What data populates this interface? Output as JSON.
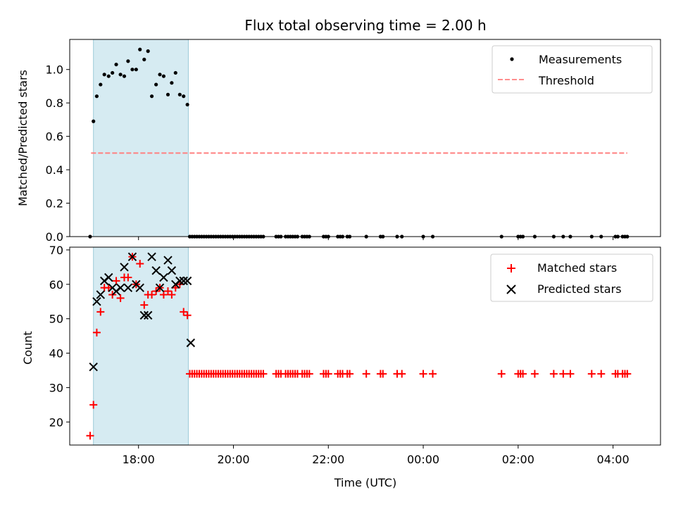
{
  "chart_data": {
    "title": "Flux total observing time = 2.00 h",
    "xlabel": "Time (UTC)",
    "x_unit": "hours",
    "xlim": [
      16.55,
      29.0
    ],
    "xticks": [
      {
        "value": 18,
        "label": "18:00"
      },
      {
        "value": 20,
        "label": "20:00"
      },
      {
        "value": 22,
        "label": "22:00"
      },
      {
        "value": 24,
        "label": "00:00"
      },
      {
        "value": 26,
        "label": "02:00"
      },
      {
        "value": 28,
        "label": "04:00"
      }
    ],
    "shaded_interval": [
      17.05,
      19.05
    ],
    "colors": {
      "shade": "#add8e6",
      "measurement": "#000000",
      "threshold": "#ff7f7f",
      "matched": "#ff0000",
      "predicted": "#000000"
    },
    "panels": [
      {
        "type": "scatter",
        "ylabel": "Matched/Predicted stars",
        "ylim": [
          0,
          1.18
        ],
        "yticks": [
          {
            "value": 0.0,
            "label": "0.0"
          },
          {
            "value": 0.2,
            "label": "0.2"
          },
          {
            "value": 0.4,
            "label": "0.4"
          },
          {
            "value": 0.6,
            "label": "0.6"
          },
          {
            "value": 0.8,
            "label": "0.8"
          },
          {
            "value": 1.0,
            "label": "1.0"
          }
        ],
        "legend": {
          "position": "upper right",
          "entries": [
            {
              "label": "Measurements",
              "marker": "dot"
            },
            {
              "label": "Threshold",
              "marker": "dashed-line"
            }
          ]
        },
        "threshold": {
          "name": "Threshold",
          "y": 0.5,
          "x_range": [
            17.0,
            28.3
          ]
        },
        "series": [
          {
            "name": "Measurements",
            "x": [
              16.98,
              17.05,
              17.12,
              17.2,
              17.28,
              17.37,
              17.45,
              17.53,
              17.62,
              17.7,
              17.78,
              17.87,
              17.95,
              18.03,
              18.12,
              18.2,
              18.28,
              18.37,
              18.45,
              18.53,
              18.62,
              18.7,
              18.78,
              18.87,
              18.95,
              19.03,
              19.08,
              19.13,
              19.18,
              19.23,
              19.28,
              19.33,
              19.38,
              19.43,
              19.48,
              19.53,
              19.58,
              19.63,
              19.68,
              19.73,
              19.78,
              19.83,
              19.88,
              19.93,
              19.98,
              20.03,
              20.08,
              20.13,
              20.18,
              20.23,
              20.28,
              20.33,
              20.38,
              20.43,
              20.48,
              20.53,
              20.58,
              20.63,
              20.9,
              20.95,
              21.0,
              21.1,
              21.15,
              21.2,
              21.25,
              21.3,
              21.35,
              21.45,
              21.5,
              21.55,
              21.6,
              21.9,
              21.95,
              22.0,
              22.2,
              22.25,
              22.3,
              22.4,
              22.45,
              22.8,
              23.1,
              23.15,
              23.45,
              23.55,
              24.0,
              24.2,
              25.65,
              26.0,
              26.05,
              26.1,
              26.35,
              26.75,
              26.95,
              27.1,
              27.55,
              27.75,
              28.05,
              28.1,
              28.2,
              28.25,
              28.3
            ],
            "y": [
              0.0,
              0.69,
              0.84,
              0.91,
              0.97,
              0.96,
              0.98,
              1.03,
              0.97,
              0.96,
              1.05,
              1.0,
              1.0,
              1.12,
              1.06,
              1.11,
              0.84,
              0.91,
              0.97,
              0.96,
              0.85,
              0.92,
              0.98,
              0.85,
              0.84,
              0.79,
              0,
              0,
              0,
              0,
              0,
              0,
              0,
              0,
              0,
              0,
              0,
              0,
              0,
              0,
              0,
              0,
              0,
              0,
              0,
              0,
              0,
              0,
              0,
              0,
              0,
              0,
              0,
              0,
              0,
              0,
              0,
              0,
              0,
              0,
              0,
              0,
              0,
              0,
              0,
              0,
              0,
              0,
              0,
              0,
              0,
              0,
              0,
              0,
              0,
              0,
              0,
              0,
              0,
              0,
              0,
              0,
              0,
              0,
              0,
              0,
              0,
              0,
              0,
              0,
              0,
              0,
              0,
              0,
              0,
              0,
              0,
              0,
              0,
              0,
              0
            ]
          }
        ]
      },
      {
        "type": "scatter",
        "ylabel": "Count",
        "ylim": [
          13.3,
          70.8
        ],
        "yticks": [
          {
            "value": 20,
            "label": "20"
          },
          {
            "value": 30,
            "label": "30"
          },
          {
            "value": 40,
            "label": "40"
          },
          {
            "value": 50,
            "label": "50"
          },
          {
            "value": 60,
            "label": "60"
          },
          {
            "value": 70,
            "label": "70"
          }
        ],
        "legend": {
          "position": "upper right",
          "entries": [
            {
              "label": "Matched stars",
              "marker": "plus"
            },
            {
              "label": "Predicted stars",
              "marker": "x"
            }
          ]
        },
        "series": [
          {
            "name": "Matched stars",
            "marker": "plus",
            "x": [
              16.98,
              17.05,
              17.12,
              17.2,
              17.28,
              17.37,
              17.45,
              17.53,
              17.62,
              17.7,
              17.78,
              17.87,
              17.95,
              18.03,
              18.12,
              18.2,
              18.28,
              18.37,
              18.45,
              18.53,
              18.62,
              18.7,
              18.78,
              18.87,
              18.95,
              19.03,
              19.08,
              19.13,
              19.18,
              19.23,
              19.28,
              19.33,
              19.38,
              19.43,
              19.48,
              19.53,
              19.58,
              19.63,
              19.68,
              19.73,
              19.78,
              19.83,
              19.88,
              19.93,
              19.98,
              20.03,
              20.08,
              20.13,
              20.18,
              20.23,
              20.28,
              20.33,
              20.38,
              20.43,
              20.48,
              20.53,
              20.58,
              20.63,
              20.9,
              20.95,
              21.0,
              21.1,
              21.15,
              21.2,
              21.25,
              21.3,
              21.35,
              21.45,
              21.5,
              21.55,
              21.6,
              21.9,
              21.95,
              22.0,
              22.2,
              22.25,
              22.3,
              22.4,
              22.45,
              22.8,
              23.1,
              23.15,
              23.45,
              23.55,
              24.0,
              24.2,
              25.65,
              26.0,
              26.05,
              26.1,
              26.35,
              26.75,
              26.95,
              27.1,
              27.55,
              27.75,
              28.05,
              28.1,
              28.2,
              28.25,
              28.3
            ],
            "y": [
              16,
              25,
              46,
              52,
              59,
              59,
              57,
              61,
              56,
              62,
              62,
              68,
              60,
              66,
              54,
              57,
              57,
              58,
              59,
              57,
              58,
              57,
              59,
              60,
              52,
              51,
              34,
              34,
              34,
              34,
              34,
              34,
              34,
              34,
              34,
              34,
              34,
              34,
              34,
              34,
              34,
              34,
              34,
              34,
              34,
              34,
              34,
              34,
              34,
              34,
              34,
              34,
              34,
              34,
              34,
              34,
              34,
              34,
              34,
              34,
              34,
              34,
              34,
              34,
              34,
              34,
              34,
              34,
              34,
              34,
              34,
              34,
              34,
              34,
              34,
              34,
              34,
              34,
              34,
              34,
              34,
              34,
              34,
              34,
              34,
              34,
              34,
              34,
              34,
              34,
              34,
              34,
              34,
              34,
              34,
              34,
              34,
              34,
              34,
              34,
              34
            ]
          },
          {
            "name": "Predicted stars",
            "marker": "x",
            "x": [
              17.05,
              17.12,
              17.2,
              17.28,
              17.37,
              17.45,
              17.53,
              17.62,
              17.7,
              17.78,
              17.87,
              17.95,
              18.03,
              18.12,
              18.2,
              18.28,
              18.37,
              18.45,
              18.53,
              18.62,
              18.7,
              18.78,
              18.87,
              18.95,
              19.03,
              19.1
            ],
            "y": [
              36,
              55,
              57,
              61,
              62,
              59,
              58,
              59,
              65,
              59,
              68,
              60,
              59,
              51,
              51,
              68,
              64,
              59,
              62,
              67,
              64,
              60,
              61,
              61,
              61,
              43
            ]
          }
        ]
      }
    ]
  }
}
